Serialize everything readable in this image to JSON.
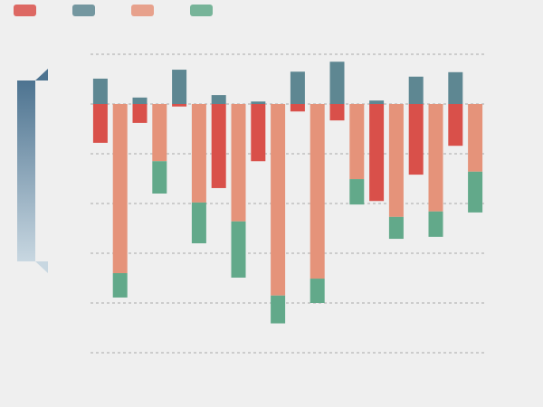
{
  "chart_data": {
    "type": "stacked-bar",
    "categories": [
      null,
      null,
      null,
      null,
      null,
      null,
      null,
      null,
      null,
      null,
      null,
      null,
      null,
      null,
      null,
      null,
      null,
      null,
      null,
      null
    ],
    "series": [
      {
        "color": "#d9504a",
        "values": [
          -0.78,
          0,
          -0.38,
          0,
          -0.05,
          0,
          -1.69,
          0,
          -1.15,
          0,
          -0.15,
          0,
          -0.33,
          0,
          -1.95,
          0,
          -1.42,
          0,
          -0.84,
          0
        ]
      },
      {
        "color": "#5e8792",
        "values": [
          0.51,
          0,
          0.13,
          0,
          0.69,
          0,
          0.18,
          0,
          0.05,
          0,
          0.65,
          0,
          0.85,
          0,
          0.07,
          0,
          0.55,
          0,
          0.64,
          0
        ]
      },
      {
        "color": "#e5937a",
        "values": [
          0,
          -3.4,
          0,
          -1.15,
          0,
          -1.98,
          0,
          -2.36,
          0,
          -3.85,
          0,
          -3.51,
          0,
          -1.51,
          0,
          -2.27,
          0,
          -2.16,
          0,
          -1.36
        ]
      },
      {
        "color": "#62a98a",
        "values": [
          0,
          -0.49,
          0,
          -0.65,
          0,
          -0.82,
          0,
          -1.13,
          0,
          -0.56,
          0,
          -0.49,
          0,
          -0.51,
          0,
          -0.44,
          0,
          -0.51,
          0,
          -0.82
        ]
      }
    ],
    "ylim": [
      -5,
      1
    ],
    "yticks": [
      -5,
      -4,
      -3,
      -2,
      -1,
      0,
      1
    ],
    "grid": true
  }
}
